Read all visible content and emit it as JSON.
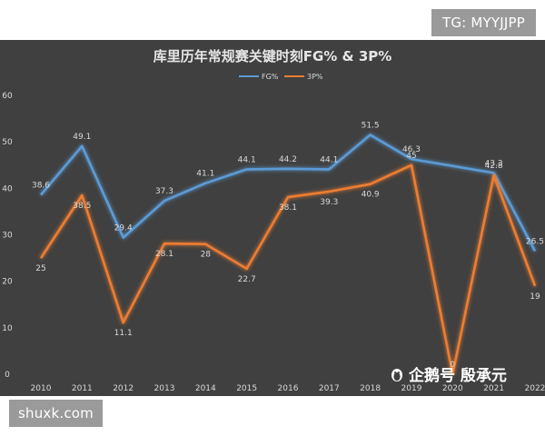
{
  "watermarks": {
    "top": "TG: MYYJJPP",
    "bottom": "shuxk.com",
    "credit": "企鹅号 殷承元"
  },
  "colors": {
    "panel": "#404040",
    "fg": "#5b9bd5",
    "tp": "#ed7d31",
    "text": "#d9d9d9"
  },
  "chart_data": {
    "type": "line",
    "title": "库里历年常规赛关键时刻FG% & 3P%",
    "categories": [
      "2010",
      "2011",
      "2012",
      "2013",
      "2014",
      "2015",
      "2016",
      "2017",
      "2018",
      "2019",
      "2020",
      "2021",
      "2022"
    ],
    "series": [
      {
        "name": "FG%",
        "values": [
          38.6,
          49.1,
          29.4,
          37.3,
          41.1,
          44.1,
          44.2,
          44.1,
          51.5,
          46.3,
          null,
          43.3,
          26.5
        ]
      },
      {
        "name": "3P%",
        "values": [
          25,
          38.5,
          11.1,
          28.1,
          28,
          22.7,
          38.1,
          39.3,
          40.9,
          45,
          0,
          42.8,
          19
        ]
      }
    ],
    "ylim": [
      0,
      60
    ],
    "yticks": [
      0,
      10,
      20,
      30,
      40,
      50,
      60
    ],
    "legend": "top-center",
    "grid": false,
    "xlabel": "",
    "ylabel": ""
  }
}
